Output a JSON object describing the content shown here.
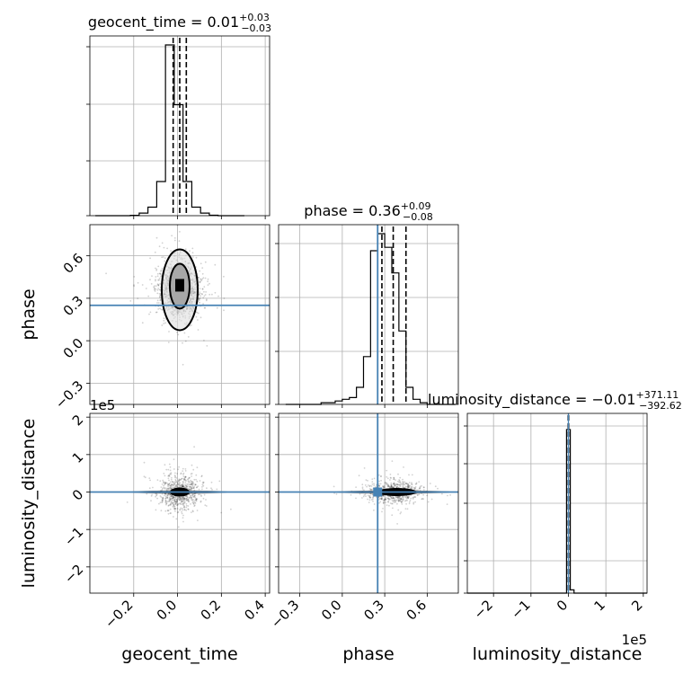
{
  "chart_data": [
    {
      "type": "histogram",
      "panel": "geocent_time-marginal",
      "title": {
        "main": "geocent_time = 0.01",
        "plus": "+0.03",
        "minus": "−0.03"
      },
      "xlim": [
        -0.4,
        0.42
      ],
      "bins_x": [
        -0.375,
        -0.335,
        -0.295,
        -0.255,
        -0.215,
        -0.175,
        -0.135,
        -0.095,
        -0.055,
        -0.015,
        0.025,
        0.065,
        0.105,
        0.145,
        0.185,
        0.225,
        0.265
      ],
      "counts": [
        0,
        0,
        0,
        0,
        0.2,
        1.5,
        5,
        20,
        100,
        65,
        20,
        5,
        1.5,
        0.3,
        0,
        0,
        0
      ],
      "quantiles": [
        -0.02,
        0.01,
        0.04
      ],
      "grid": true
    },
    {
      "type": "scatter",
      "panel": "phase-vs-geocent_time",
      "xlim": [
        -0.4,
        0.42
      ],
      "ylim": [
        -0.45,
        0.82
      ],
      "center": [
        0.01,
        0.36
      ],
      "truth_y": 0.25,
      "ylabel": "phase",
      "yticks": [
        -0.3,
        0.0,
        0.3,
        0.6
      ],
      "ytick_labels": [
        "−0.3",
        "0.0",
        "0.3",
        "0.6"
      ]
    },
    {
      "type": "histogram",
      "panel": "phase-marginal",
      "title": {
        "main": "phase = 0.36",
        "plus": "+0.09",
        "minus": "−0.08"
      },
      "xlim": [
        -0.45,
        0.82
      ],
      "bins_x": [
        -0.4,
        -0.35,
        -0.3,
        -0.25,
        -0.2,
        -0.15,
        -0.1,
        -0.05,
        0.0,
        0.05,
        0.1,
        0.15,
        0.2,
        0.25,
        0.3,
        0.35,
        0.4,
        0.45,
        0.5,
        0.55,
        0.6,
        0.65,
        0.7,
        0.75
      ],
      "counts": [
        0,
        0,
        0,
        0,
        0,
        1,
        1,
        2,
        3,
        4,
        10,
        28,
        90,
        100,
        92,
        77,
        43,
        10,
        3,
        1,
        0,
        0,
        0
      ],
      "quantiles": [
        0.28,
        0.36,
        0.45
      ],
      "truth_x": 0.25,
      "grid": true
    },
    {
      "type": "scatter",
      "panel": "luminosity_distance-vs-geocent_time",
      "xlim": [
        -0.4,
        0.42
      ],
      "ylim": [
        -270000,
        210000
      ],
      "center": [
        0.01,
        0
      ],
      "truth_y": 0,
      "ylabel": "luminosity_distance",
      "xlabel": "geocent_time",
      "xticks": [
        -0.2,
        0.0,
        0.2,
        0.4
      ],
      "xtick_labels": [
        "−0.2",
        "0.0",
        "0.2",
        "0.4"
      ],
      "yticks": [
        -200000,
        -100000,
        0,
        100000,
        200000
      ],
      "ytick_labels": [
        "−2",
        "−1",
        "0",
        "1",
        "2"
      ],
      "y_offset_text": "1e5"
    },
    {
      "type": "scatter",
      "panel": "luminosity_distance-vs-phase",
      "xlim": [
        -0.45,
        0.82
      ],
      "ylim": [
        -270000,
        210000
      ],
      "center": [
        0.36,
        0
      ],
      "truth_x": 0.25,
      "truth_y": 0,
      "xlabel": "phase",
      "xticks": [
        -0.3,
        0.0,
        0.3,
        0.6
      ],
      "xtick_labels": [
        "−0.3",
        "0.0",
        "0.3",
        "0.6"
      ]
    },
    {
      "type": "histogram",
      "panel": "luminosity_distance-marginal",
      "title": {
        "main": "luminosity_distance = −0.01",
        "plus": "+371.11",
        "minus": "−392.62"
      },
      "xlim": [
        -270000,
        210000
      ],
      "bins_x": [
        -5000,
        10000
      ],
      "counts": [
        100,
        2
      ],
      "quantiles": [
        -392.62,
        0,
        371.11
      ],
      "truth_x": 0,
      "xlabel": "luminosity_distance",
      "xticks": [
        -200000,
        -100000,
        0,
        100000,
        200000
      ],
      "xtick_labels": [
        "−2",
        "−1",
        "0",
        "1",
        "2"
      ],
      "x_offset_text": "1e5",
      "grid": true
    }
  ],
  "colors": {
    "truth": "#4682b4",
    "hist": "#000000",
    "grid": "#b0b0b0",
    "points": "#000000"
  }
}
